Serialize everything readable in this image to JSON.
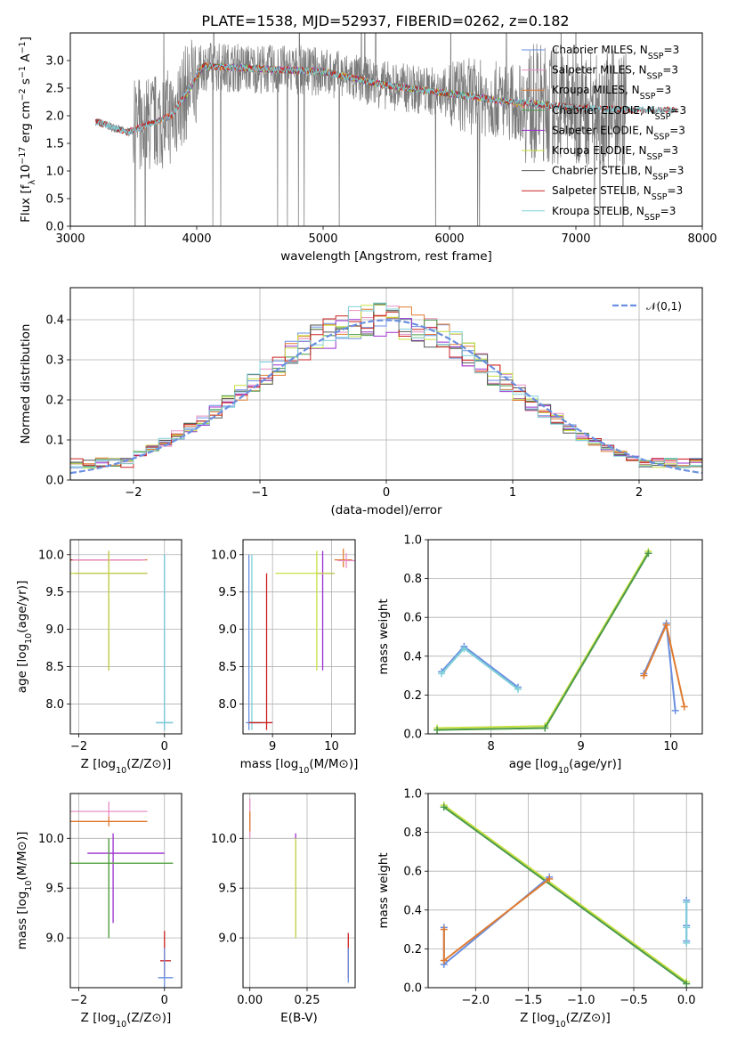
{
  "title": "PLATE=1538, MJD=52937, FIBERID=0262, z=0.182",
  "colors": [
    "#6a8fe0",
    "#e88fc4",
    "#e07b30",
    "#4a9a4a",
    "#9b2fcf",
    "#c8e040",
    "#555555",
    "#cc2222",
    "#7fd0d8"
  ],
  "chart_data": [
    {
      "id": "spectrum",
      "type": "line",
      "xlabel": "wavelength [Angstrom, rest frame]",
      "ylabel": "Flux [f_λ10^-17 erg cm^-2 s^-1 A^-1]",
      "xlim": [
        3000,
        8000
      ],
      "ylim": [
        0,
        3.5
      ],
      "xticks": [
        3000,
        4000,
        5000,
        6000,
        7000,
        8000
      ],
      "yticks": [
        0.0,
        0.5,
        1.0,
        1.5,
        2.0,
        2.5,
        3.0
      ],
      "legend": "top-right",
      "series": [
        {
          "name": "Chabrier MILES, N_SSP=3",
          "x": [
            3450,
            3800,
            4050,
            4500,
            5000,
            5500,
            6000,
            6300,
            6600
          ],
          "y": [
            1.7,
            2.0,
            2.9,
            2.85,
            2.8,
            2.55,
            2.4,
            2.3,
            2.2
          ]
        },
        {
          "name": "Salpeter MILES, N_SSP=3",
          "x": [
            3450,
            3800,
            4050,
            4500,
            5000,
            5500,
            6000,
            6300,
            6600
          ],
          "y": [
            1.7,
            2.0,
            2.9,
            2.85,
            2.8,
            2.55,
            2.4,
            2.3,
            2.2
          ]
        },
        {
          "name": "Kroupa MILES, N_SSP=3",
          "x": [
            3450,
            3800,
            4050,
            4500,
            5000,
            5500,
            6000,
            6300,
            6600
          ],
          "y": [
            1.7,
            2.0,
            2.9,
            2.85,
            2.8,
            2.55,
            2.4,
            2.3,
            2.2
          ]
        },
        {
          "name": "Chabrier ELODIE, N_SSP=3",
          "x": [
            3900,
            4050,
            4500,
            5000,
            5500,
            6000,
            6500,
            6800
          ],
          "y": [
            2.3,
            2.9,
            2.85,
            2.8,
            2.55,
            2.4,
            2.25,
            2.2
          ]
        },
        {
          "name": "Salpeter ELODIE, N_SSP=3",
          "x": [
            3900,
            4050,
            4500,
            5000,
            5500,
            6000,
            6500,
            6800
          ],
          "y": [
            2.3,
            2.9,
            2.85,
            2.8,
            2.55,
            2.4,
            2.25,
            2.2
          ]
        },
        {
          "name": "Kroupa ELODIE, N_SSP=3",
          "x": [
            3900,
            4050,
            4500,
            5000,
            5500,
            6000,
            6500,
            6800
          ],
          "y": [
            2.3,
            2.9,
            2.85,
            2.8,
            2.55,
            2.4,
            2.25,
            2.2
          ]
        },
        {
          "name": "Chabrier STELIB, N_SSP=3",
          "x": [
            3200,
            3450,
            3800,
            4050,
            4500,
            5000,
            5500,
            6000,
            6500,
            7000,
            7500,
            7800
          ],
          "y": [
            1.9,
            1.7,
            2.0,
            2.9,
            2.85,
            2.8,
            2.55,
            2.4,
            2.25,
            2.15,
            2.1,
            2.1
          ]
        },
        {
          "name": "Salpeter STELIB, N_SSP=3",
          "x": [
            3200,
            3450,
            3800,
            4050,
            4500,
            5000,
            5500,
            6000,
            6500,
            7000,
            7500,
            7800
          ],
          "y": [
            1.9,
            1.7,
            2.0,
            2.9,
            2.85,
            2.8,
            2.55,
            2.4,
            2.25,
            2.15,
            2.1,
            2.1
          ]
        },
        {
          "name": "Kroupa STELIB, N_SSP=3",
          "x": [
            3200,
            3450,
            3800,
            4050,
            4500,
            5000,
            5500,
            6000,
            6500,
            7000,
            7500,
            7800
          ],
          "y": [
            1.9,
            1.7,
            2.0,
            2.9,
            2.85,
            2.8,
            2.55,
            2.4,
            2.25,
            2.15,
            2.1,
            2.1
          ]
        }
      ],
      "data_spectrum": {
        "x": [
          3200,
          3450,
          3800,
          4050,
          4500,
          5000,
          5500,
          6000,
          6500,
          7000,
          7400
        ],
        "y": [
          1.9,
          1.7,
          2.0,
          2.9,
          2.85,
          2.8,
          2.55,
          2.4,
          2.25,
          2.15,
          2.1
        ]
      }
    },
    {
      "id": "residuals",
      "type": "line",
      "xlabel": "(data-model)/error",
      "ylabel": "Normed distribution",
      "xlim": [
        -2.5,
        2.5
      ],
      "ylim": [
        0,
        0.48
      ],
      "xticks": [
        -2,
        -1,
        0,
        1,
        2
      ],
      "yticks": [
        0.0,
        0.1,
        0.2,
        0.3,
        0.4
      ],
      "grid": true,
      "legend": "top-right",
      "reference": {
        "name": "𝒩(0,1)",
        "mean": 0,
        "sigma": 1
      }
    },
    {
      "id": "age_vs_Z",
      "type": "scatter",
      "xlabel": "Z [log10(Z/Z⊙)]",
      "ylabel": "age [log10(age/yr)]",
      "xlim": [
        -2.2,
        0.4
      ],
      "ylim": [
        7.6,
        10.2
      ],
      "xticks": [
        -2,
        0
      ],
      "yticks": [
        8.0,
        8.5,
        9.0,
        9.5,
        10.0
      ],
      "grid": true,
      "points": [
        {
          "x": -1.3,
          "y": 9.93,
          "xerr": [
            0.9,
            0.9
          ],
          "yerr": [
            0.05,
            0.1
          ],
          "c": 2
        },
        {
          "x": -1.3,
          "y": 9.93,
          "xerr": [
            0.9,
            0.8
          ],
          "yerr": [
            0.05,
            0.1
          ],
          "c": 7
        },
        {
          "x": -1.3,
          "y": 9.93,
          "xerr": [
            0.85,
            0.85
          ],
          "yerr": [
            0.05,
            0.1
          ],
          "c": 1
        },
        {
          "x": -1.3,
          "y": 9.75,
          "xerr": [
            0.8,
            0.9
          ],
          "yerr": [
            1.3,
            0.3
          ],
          "c": 4
        },
        {
          "x": -1.3,
          "y": 9.75,
          "xerr": [
            0.9,
            0.9
          ],
          "yerr": [
            1.3,
            0.3
          ],
          "c": 5
        },
        {
          "x": 0.0,
          "y": 7.75,
          "xerr": [
            0.2,
            0.2
          ],
          "yerr": [
            0.1,
            2.25
          ],
          "c": 0
        },
        {
          "x": 0.0,
          "y": 7.75,
          "xerr": [
            0.2,
            0.2
          ],
          "yerr": [
            0.1,
            2.25
          ],
          "c": 8
        }
      ]
    },
    {
      "id": "age_vs_mass",
      "type": "scatter",
      "xlabel": "mass [log10(M/M⊙)]",
      "ylabel": "",
      "xlim": [
        8.5,
        10.4
      ],
      "ylim": [
        7.6,
        10.2
      ],
      "xticks": [
        9,
        10
      ],
      "yticks": [
        8.0,
        8.5,
        9.0,
        9.5,
        10.0
      ],
      "grid": true,
      "points": [
        {
          "x": 10.2,
          "y": 9.93,
          "xerr": [
            0.15,
            0.15
          ],
          "yerr": [
            0.1,
            0.15
          ],
          "c": 2
        },
        {
          "x": 10.25,
          "y": 9.92,
          "xerr": [
            0.15,
            0.15
          ],
          "yerr": [
            0.1,
            0.1
          ],
          "c": 1
        },
        {
          "x": 9.85,
          "y": 9.75,
          "xerr": [
            0.1,
            0.2
          ],
          "yerr": [
            1.3,
            0.3
          ],
          "c": 4
        },
        {
          "x": 9.75,
          "y": 9.75,
          "xerr": [
            0.7,
            0.3
          ],
          "yerr": [
            1.3,
            0.3
          ],
          "c": 5
        },
        {
          "x": 8.6,
          "y": 7.75,
          "xerr": [
            0.05,
            0.2
          ],
          "yerr": [
            0.1,
            2.25
          ],
          "c": 0
        },
        {
          "x": 8.65,
          "y": 7.75,
          "xerr": [
            0.05,
            0.2
          ],
          "yerr": [
            0.1,
            2.25
          ],
          "c": 8
        },
        {
          "x": 8.9,
          "y": 7.75,
          "xerr": [
            0.3,
            0.1
          ],
          "yerr": [
            0.1,
            2.0
          ],
          "c": 7
        }
      ]
    },
    {
      "id": "weight_vs_age",
      "type": "line",
      "xlabel": "age [log10(age/yr)]",
      "ylabel": "mass weight",
      "xlim": [
        7.3,
        10.35
      ],
      "ylim": [
        0,
        1.0
      ],
      "xticks": [
        8,
        9,
        10
      ],
      "yticks": [
        0.0,
        0.2,
        0.4,
        0.6,
        0.8,
        1.0
      ],
      "grid": true,
      "series": [
        {
          "name": "",
          "c": 0,
          "x": [
            7.45,
            7.7,
            8.3
          ],
          "y": [
            0.32,
            0.45,
            0.24
          ]
        },
        {
          "name": "",
          "c": 8,
          "x": [
            7.45,
            7.7,
            8.3
          ],
          "y": [
            0.31,
            0.44,
            0.23
          ]
        },
        {
          "name": "",
          "c": 5,
          "x": [
            7.4,
            8.6,
            9.75
          ],
          "y": [
            0.03,
            0.04,
            0.94
          ]
        },
        {
          "name": "",
          "c": 3,
          "x": [
            7.4,
            8.6,
            9.75
          ],
          "y": [
            0.02,
            0.03,
            0.93
          ]
        },
        {
          "name": "",
          "c": 0,
          "x": [
            9.7,
            9.95,
            10.05
          ],
          "y": [
            0.31,
            0.57,
            0.12
          ]
        },
        {
          "name": "",
          "c": 2,
          "x": [
            9.7,
            9.95,
            10.15
          ],
          "y": [
            0.3,
            0.56,
            0.14
          ]
        }
      ]
    },
    {
      "id": "mass_vs_Z",
      "type": "scatter",
      "xlabel": "Z [log10(Z/Z⊙)]",
      "ylabel": "mass [log10(M/M⊙)]",
      "xlim": [
        -2.2,
        0.4
      ],
      "ylim": [
        8.5,
        10.45
      ],
      "xticks": [
        -2,
        0
      ],
      "yticks": [
        9.0,
        9.5,
        10.0
      ],
      "grid": true,
      "points": [
        {
          "x": -1.3,
          "y": 10.27,
          "xerr": [
            0.9,
            0.9
          ],
          "yerr": [
            0.05,
            0.1
          ],
          "c": 1
        },
        {
          "x": -1.3,
          "y": 10.17,
          "xerr": [
            0.9,
            0.9
          ],
          "yerr": [
            0.05,
            0.05
          ],
          "c": 2
        },
        {
          "x": -1.2,
          "y": 9.85,
          "xerr": [
            0.6,
            1.2
          ],
          "yerr": [
            0.7,
            0.2
          ],
          "c": 4
        },
        {
          "x": -1.3,
          "y": 9.75,
          "xerr": [
            0.9,
            1.5
          ],
          "yerr": [
            0.75,
            0.25
          ],
          "c": 5
        },
        {
          "x": -1.3,
          "y": 9.75,
          "xerr": [
            0.9,
            1.5
          ],
          "yerr": [
            0.75,
            0.25
          ],
          "c": 3
        },
        {
          "x": 0.0,
          "y": 8.77,
          "xerr": [
            0.1,
            0.15
          ],
          "yerr": [
            0.15,
            0.3
          ],
          "c": 7
        },
        {
          "x": 0.0,
          "y": 8.6,
          "xerr": [
            0.15,
            0.2
          ],
          "yerr": [
            0.1,
            0.3
          ],
          "c": 0
        }
      ]
    },
    {
      "id": "mass_vs_EBV",
      "type": "scatter",
      "xlabel": "E(B-V)",
      "ylabel": "",
      "xlim": [
        -0.03,
        0.46
      ],
      "ylim": [
        8.5,
        10.45
      ],
      "xticks": [
        0.0,
        0.25
      ],
      "ticklabels": [
        "0.00",
        "0.25"
      ],
      "yticks": [
        9.0,
        9.5,
        10.0
      ],
      "grid": true,
      "points": [
        {
          "x": 0.0,
          "y": 10.2,
          "xerr": [
            0,
            0
          ],
          "yerr": [
            0.2,
            0.2
          ],
          "c": 1
        },
        {
          "x": 0.0,
          "y": 10.17,
          "xerr": [
            0,
            0
          ],
          "yerr": [
            0.1,
            0.1
          ],
          "c": 2
        },
        {
          "x": 0.2,
          "y": 9.75,
          "xerr": [
            0,
            0
          ],
          "yerr": [
            0.75,
            0.3
          ],
          "c": 4
        },
        {
          "x": 0.2,
          "y": 9.75,
          "xerr": [
            0,
            0
          ],
          "yerr": [
            0.75,
            0.25
          ],
          "c": 5
        },
        {
          "x": 0.43,
          "y": 8.8,
          "xerr": [
            0,
            0
          ],
          "yerr": [
            0.2,
            0.25
          ],
          "c": 7
        },
        {
          "x": 0.43,
          "y": 8.7,
          "xerr": [
            0,
            0
          ],
          "yerr": [
            0.15,
            0.2
          ],
          "c": 0
        }
      ]
    },
    {
      "id": "weight_vs_Z",
      "type": "line",
      "xlabel": "Z [log10(Z/Z⊙)]",
      "ylabel": "mass weight",
      "xlim": [
        -2.45,
        0.15
      ],
      "ylim": [
        0,
        1.0
      ],
      "xticks": [
        -2.0,
        -1.5,
        -1.0,
        -0.5,
        0.0
      ],
      "ticklabels": [
        "−2.0",
        "−1.5",
        "−1.0",
        "−0.5",
        "0.0"
      ],
      "yticks": [
        0.0,
        0.2,
        0.4,
        0.6,
        0.8,
        1.0
      ],
      "grid": true,
      "series": [
        {
          "name": "",
          "c": 5,
          "x": [
            -2.3,
            0.0
          ],
          "y": [
            0.94,
            0.03
          ]
        },
        {
          "name": "",
          "c": 3,
          "x": [
            -2.3,
            0.0
          ],
          "y": [
            0.93,
            0.02
          ]
        },
        {
          "name": "",
          "c": 0,
          "x": [
            -2.3,
            -2.3,
            -1.3
          ],
          "y": [
            0.31,
            0.12,
            0.57
          ]
        },
        {
          "name": "",
          "c": 2,
          "x": [
            -2.3,
            -2.3,
            -1.3
          ],
          "y": [
            0.3,
            0.14,
            0.56
          ]
        },
        {
          "name": "",
          "c": 0,
          "x": [
            0.0,
            0.0,
            0.0
          ],
          "y": [
            0.45,
            0.24,
            0.32
          ]
        },
        {
          "name": "",
          "c": 8,
          "x": [
            0.0,
            0.0,
            0.0
          ],
          "y": [
            0.44,
            0.23,
            0.31
          ]
        }
      ]
    }
  ]
}
